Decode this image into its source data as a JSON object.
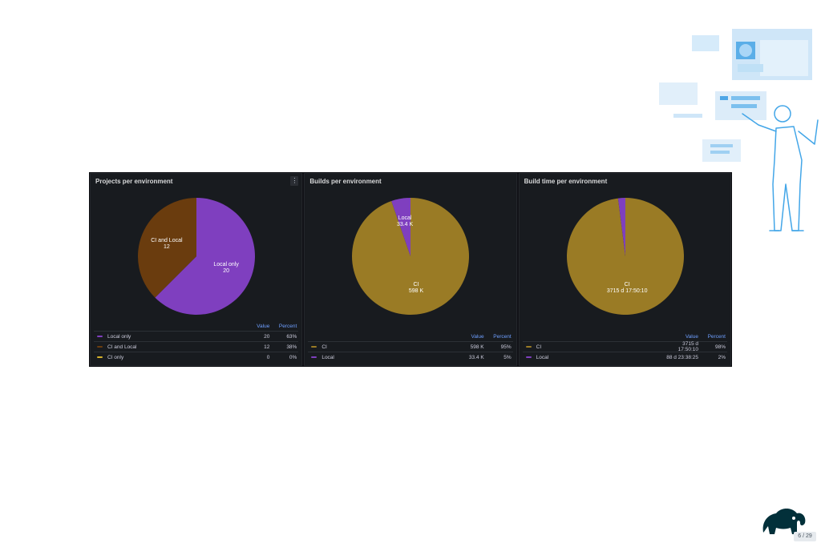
{
  "slide": {
    "page_number": "6 / 29"
  },
  "colors": {
    "purple": "#7f3fbf",
    "brown": "#6a3c0e",
    "gold": "#9a7b25",
    "legend_header": "#6e9fff"
  },
  "legend_headers": {
    "value": "Value",
    "percent": "Percent"
  },
  "icons": {
    "panel_menu": "vertical-dots-icon",
    "logo": "elephant-logo-icon",
    "illustration": "person-with-dashboards-illustration"
  },
  "chart_data": [
    {
      "type": "pie",
      "title": "Projects per environment",
      "slices": [
        {
          "label": "Local only",
          "value": 20,
          "value_text": "20",
          "percent": "63%",
          "color": "#7f3fbf",
          "show_label": true
        },
        {
          "label": "CI and Local",
          "value": 12,
          "value_text": "12",
          "percent": "38%",
          "color": "#6a3c0e",
          "show_label": true
        },
        {
          "label": "CI only",
          "value": 0,
          "value_text": "0",
          "percent": "0%",
          "color": "#d6b12a",
          "show_label": false
        }
      ]
    },
    {
      "type": "pie",
      "title": "Builds per environment",
      "slices": [
        {
          "label": "CI",
          "value": 598000,
          "value_text": "598 K",
          "percent": "95%",
          "color": "#9a7b25",
          "show_label": true
        },
        {
          "label": "Local",
          "value": 33400,
          "value_text": "33.4 K",
          "percent": "5%",
          "color": "#7f3fbf",
          "show_label": true
        }
      ]
    },
    {
      "type": "pie",
      "title": "Build time per environment",
      "slices": [
        {
          "label": "CI",
          "value": 98,
          "value_text": "3715 d 17:50:10",
          "percent": "98%",
          "color": "#9a7b25",
          "show_label": true
        },
        {
          "label": "Local",
          "value": 2,
          "value_text": "88 d 23:38:25",
          "percent": "2%",
          "color": "#7f3fbf",
          "show_label": false
        }
      ]
    }
  ]
}
